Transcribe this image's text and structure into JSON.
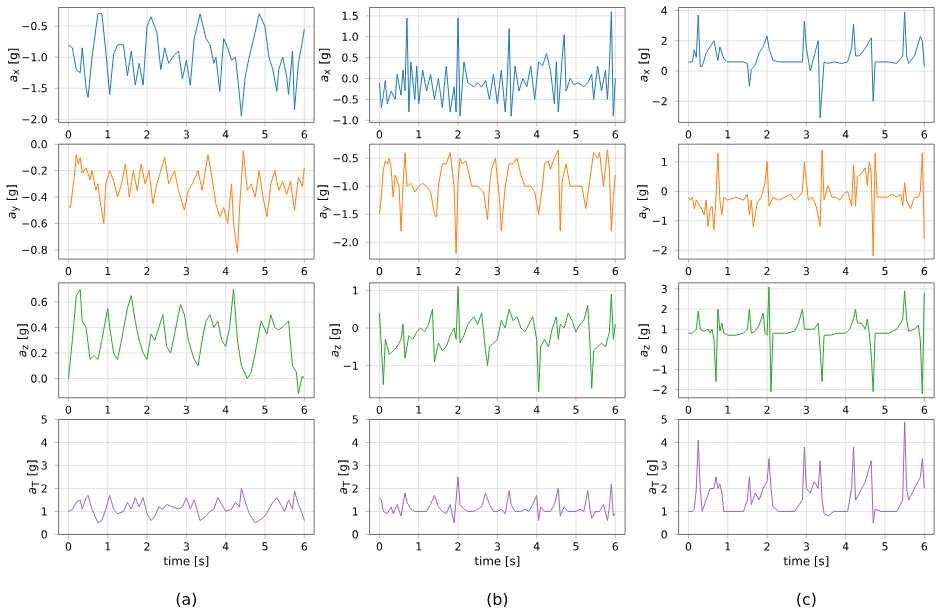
{
  "chart_data": [
    {
      "type": "line",
      "ylabel": "*a*$_{x}$ [g]",
      "color": "#1f77b4",
      "grid": true,
      "xlim": [
        -0.25,
        6.25
      ],
      "ylim": [
        -2.05,
        -0.2
      ],
      "xticks": [
        0,
        1,
        2,
        3,
        4,
        5,
        6
      ],
      "yticks": [
        {
          "value": -2,
          "label": "−2.0"
        },
        {
          "value": -1.5,
          "label": "−1.5"
        },
        {
          "value": -1,
          "label": "−1.0"
        },
        {
          "value": -0.5,
          "label": "−0.5"
        }
      ],
      "x": [
        0,
        0.1,
        0.2,
        0.3,
        0.35,
        0.45,
        0.5,
        0.6,
        0.75,
        0.85,
        0.95,
        1.05,
        1.15,
        1.25,
        1.4,
        1.5,
        1.6,
        1.7,
        1.8,
        1.9,
        2.0,
        2.1,
        2.25,
        2.35,
        2.45,
        2.55,
        2.65,
        2.8,
        2.9,
        3.0,
        3.1,
        3.2,
        3.35,
        3.5,
        3.6,
        3.7,
        3.75,
        3.85,
        3.95,
        4.05,
        4.15,
        4.25,
        4.35,
        4.4,
        4.5,
        4.6,
        4.75,
        4.85,
        5.0,
        5.1,
        5.2,
        5.3,
        5.35,
        5.45,
        5.55,
        5.6,
        5.7,
        5.75,
        5.85,
        5.95,
        6.0
      ],
      "values": [
        -0.8,
        -0.85,
        -1.2,
        -1.25,
        -0.85,
        -1.5,
        -1.65,
        -1.0,
        -0.3,
        -0.3,
        -0.9,
        -1.6,
        -0.95,
        -0.8,
        -0.8,
        -1.3,
        -0.9,
        -1.45,
        -1.1,
        -1.45,
        -0.5,
        -0.35,
        -0.6,
        -1.2,
        -0.85,
        -1.1,
        -1.0,
        -0.9,
        -1.35,
        -1.05,
        -1.45,
        -0.7,
        -0.3,
        -0.7,
        -0.8,
        -1.1,
        -1.0,
        -1.55,
        -0.7,
        -0.85,
        -1.05,
        -1.0,
        -1.6,
        -1.95,
        -1.3,
        -1.0,
        -0.6,
        -0.3,
        -0.5,
        -1.0,
        -1.2,
        -1.55,
        -1.2,
        -1.0,
        -1.3,
        -1.6,
        -0.9,
        -1.85,
        -1.1,
        -0.75,
        -0.55
      ]
    },
    {
      "type": "line",
      "ylabel": "*a*$_{x}$ [g]",
      "color": "#1f77b4",
      "grid": true,
      "xlim": [
        -0.25,
        6.25
      ],
      "ylim": [
        -1.05,
        1.7
      ],
      "xticks": [
        0,
        1,
        2,
        3,
        4,
        5,
        6
      ],
      "yticks": [
        {
          "value": -1,
          "label": "−1.0"
        },
        {
          "value": -0.5,
          "label": "−0.5"
        },
        {
          "value": 0,
          "label": "0.0"
        },
        {
          "value": 0.5,
          "label": "0.5"
        },
        {
          "value": 1,
          "label": "1.0"
        },
        {
          "value": 1.5,
          "label": "1.5"
        }
      ],
      "x": [
        0,
        0.05,
        0.1,
        0.15,
        0.2,
        0.3,
        0.4,
        0.45,
        0.55,
        0.6,
        0.65,
        0.7,
        0.75,
        0.8,
        0.9,
        0.95,
        1.0,
        1.1,
        1.2,
        1.3,
        1.4,
        1.5,
        1.6,
        1.7,
        1.8,
        1.9,
        1.95,
        2.0,
        2.05,
        2.15,
        2.25,
        2.4,
        2.5,
        2.6,
        2.7,
        2.8,
        2.9,
        3.0,
        3.1,
        3.2,
        3.25,
        3.3,
        3.35,
        3.45,
        3.55,
        3.65,
        3.75,
        3.85,
        3.95,
        4.05,
        4.15,
        4.25,
        4.35,
        4.45,
        4.5,
        4.55,
        4.65,
        4.7,
        4.75,
        4.85,
        4.95,
        5.05,
        5.2,
        5.3,
        5.4,
        5.45,
        5.55,
        5.65,
        5.75,
        5.8,
        5.85,
        5.9,
        5.95,
        6.0
      ],
      "values": [
        -0.1,
        -0.7,
        -0.4,
        -0.05,
        -0.6,
        -0.3,
        -0.5,
        0.1,
        -0.4,
        0.2,
        -0.3,
        1.45,
        -0.8,
        0.4,
        -0.5,
        0.3,
        -0.6,
        0.2,
        -0.3,
        0.1,
        -0.5,
        0.0,
        -0.7,
        0.3,
        -0.8,
        -0.2,
        -0.8,
        1.45,
        -0.9,
        0.4,
        -0.1,
        -0.2,
        -0.1,
        -0.2,
        -0.05,
        -0.5,
        0.1,
        -0.6,
        0.2,
        -0.8,
        -0.1,
        1.2,
        -0.9,
        0.3,
        -0.3,
        0.0,
        -0.2,
        0.3,
        -0.5,
        0.4,
        0.3,
        0.6,
        0.2,
        -0.6,
        0.4,
        -0.8,
        0.5,
        1.05,
        -0.3,
        0.0,
        -0.15,
        -0.1,
        -0.2,
        -0.1,
        0.1,
        -0.5,
        0.3,
        -0.3,
        0.2,
        -0.5,
        0.3,
        1.6,
        -0.9,
        0.0
      ]
    },
    {
      "type": "line",
      "ylabel": "*a*$_{x}$ [g]",
      "color": "#1f77b4",
      "grid": true,
      "xlim": [
        -0.25,
        6.25
      ],
      "ylim": [
        -3.4,
        4.2
      ],
      "xticks": [
        0,
        1,
        2,
        3,
        4,
        5,
        6
      ],
      "yticks": [
        {
          "value": -2,
          "label": "−2"
        },
        {
          "value": 0,
          "label": "0"
        },
        {
          "value": 2,
          "label": "2"
        },
        {
          "value": 4,
          "label": "4"
        }
      ],
      "x": [
        0,
        0.1,
        0.15,
        0.2,
        0.25,
        0.3,
        0.35,
        0.45,
        0.55,
        0.65,
        0.7,
        0.75,
        0.8,
        0.9,
        1.0,
        1.2,
        1.4,
        1.5,
        1.55,
        1.6,
        1.7,
        1.8,
        1.9,
        2.0,
        2.05,
        2.15,
        2.3,
        2.5,
        2.7,
        2.9,
        2.95,
        3.0,
        3.1,
        3.2,
        3.3,
        3.35,
        3.45,
        3.55,
        3.7,
        3.9,
        4.05,
        4.15,
        4.2,
        4.25,
        4.35,
        4.5,
        4.65,
        4.7,
        4.75,
        4.9,
        5.1,
        5.3,
        5.45,
        5.5,
        5.55,
        5.6,
        5.75,
        5.9,
        5.95,
        6.0
      ],
      "values": [
        0.6,
        0.6,
        1.4,
        0.9,
        3.7,
        0.3,
        0.3,
        1.2,
        1.6,
        2.0,
        1.3,
        0.7,
        1.6,
        0.8,
        0.6,
        0.6,
        0.6,
        0.5,
        -1.0,
        0.1,
        0.4,
        1.2,
        1.6,
        2.3,
        1.5,
        0.7,
        0.6,
        0.6,
        0.6,
        0.6,
        3.3,
        1.5,
        0.0,
        1.0,
        2.0,
        -3.1,
        0.6,
        0.5,
        0.6,
        0.5,
        0.6,
        1.5,
        3.1,
        1.0,
        1.0,
        1.5,
        2.2,
        -2.0,
        0.6,
        0.6,
        0.6,
        0.5,
        1.0,
        3.9,
        1.0,
        0.5,
        1.0,
        2.3,
        2.0,
        0.3
      ]
    },
    {
      "type": "line",
      "ylabel": "*a*$_{y}$ [g]",
      "color": "#ff7f0e",
      "grid": true,
      "xlim": [
        -0.25,
        6.25
      ],
      "ylim": [
        -0.87,
        0.0
      ],
      "xticks": [
        0,
        1,
        2,
        3,
        4,
        5,
        6
      ],
      "yticks": [
        {
          "value": -0.8,
          "label": "−0.8"
        },
        {
          "value": -0.6,
          "label": "−0.6"
        },
        {
          "value": -0.4,
          "label": "−0.4"
        },
        {
          "value": -0.2,
          "label": "−0.2"
        },
        {
          "value": 0,
          "label": "0.0"
        }
      ],
      "x": [
        0,
        0.05,
        0.15,
        0.2,
        0.25,
        0.3,
        0.35,
        0.45,
        0.55,
        0.6,
        0.7,
        0.75,
        0.8,
        0.9,
        0.95,
        1.05,
        1.15,
        1.25,
        1.35,
        1.45,
        1.55,
        1.65,
        1.75,
        1.85,
        1.95,
        2.05,
        2.15,
        2.25,
        2.35,
        2.45,
        2.55,
        2.7,
        2.8,
        2.95,
        3.05,
        3.15,
        3.3,
        3.4,
        3.55,
        3.65,
        3.75,
        3.85,
        3.95,
        4.05,
        4.15,
        4.2,
        4.3,
        4.35,
        4.45,
        4.55,
        4.65,
        4.75,
        4.85,
        4.95,
        5.05,
        5.15,
        5.25,
        5.35,
        5.45,
        5.55,
        5.65,
        5.75,
        5.85,
        5.95,
        6.0
      ],
      "values": [
        -0.47,
        -0.48,
        -0.25,
        -0.08,
        -0.15,
        -0.1,
        -0.22,
        -0.18,
        -0.27,
        -0.2,
        -0.35,
        -0.3,
        -0.42,
        -0.6,
        -0.3,
        -0.2,
        -0.28,
        -0.4,
        -0.3,
        -0.15,
        -0.4,
        -0.2,
        -0.35,
        -0.15,
        -0.3,
        -0.2,
        -0.45,
        -0.3,
        -0.2,
        -0.1,
        -0.3,
        -0.2,
        -0.35,
        -0.5,
        -0.35,
        -0.3,
        -0.2,
        -0.35,
        -0.08,
        -0.25,
        -0.45,
        -0.55,
        -0.48,
        -0.6,
        -0.3,
        -0.6,
        -0.82,
        -0.5,
        -0.05,
        -0.35,
        -0.3,
        -0.4,
        -0.2,
        -0.4,
        -0.55,
        -0.3,
        -0.2,
        -0.35,
        -0.28,
        -0.38,
        -0.28,
        -0.5,
        -0.25,
        -0.32,
        -0.18
      ]
    },
    {
      "type": "line",
      "ylabel": "*a*$_{y}$ [g]",
      "color": "#ff7f0e",
      "grid": true,
      "xlim": [
        -0.25,
        6.25
      ],
      "ylim": [
        -2.3,
        -0.25
      ],
      "xticks": [
        0,
        1,
        2,
        3,
        4,
        5,
        6
      ],
      "yticks": [
        {
          "value": -2,
          "label": "−2.0"
        },
        {
          "value": -1.5,
          "label": "−1.5"
        },
        {
          "value": -1,
          "label": "−1.0"
        },
        {
          "value": -0.5,
          "label": "−0.5"
        }
      ],
      "x": [
        0,
        0.05,
        0.1,
        0.15,
        0.2,
        0.25,
        0.3,
        0.35,
        0.4,
        0.5,
        0.55,
        0.6,
        0.65,
        0.7,
        0.8,
        0.9,
        1.0,
        1.1,
        1.2,
        1.3,
        1.4,
        1.45,
        1.5,
        1.6,
        1.7,
        1.8,
        1.9,
        1.95,
        2.0,
        2.05,
        2.1,
        2.2,
        2.35,
        2.5,
        2.65,
        2.75,
        2.8,
        2.85,
        2.95,
        3.05,
        3.1,
        3.2,
        3.3,
        3.4,
        3.5,
        3.6,
        3.7,
        3.85,
        3.95,
        4.05,
        4.15,
        4.2,
        4.3,
        4.35,
        4.45,
        4.55,
        4.6,
        4.65,
        4.75,
        4.85,
        5.0,
        5.15,
        5.25,
        5.35,
        5.45,
        5.55,
        5.6,
        5.7,
        5.8,
        5.85,
        5.9,
        5.95,
        6.0
      ],
      "values": [
        -1.5,
        -1.2,
        -0.7,
        -0.55,
        -0.6,
        -0.5,
        -0.7,
        -1.2,
        -0.8,
        -1.0,
        -1.8,
        -1.0,
        -0.4,
        -1.0,
        -0.95,
        -1.1,
        -1.0,
        -0.95,
        -1.0,
        -1.1,
        -1.5,
        -1.55,
        -1.0,
        -0.6,
        -0.6,
        -0.4,
        -1.0,
        -2.2,
        -0.9,
        -0.5,
        -0.6,
        -0.55,
        -1.0,
        -1.0,
        -1.1,
        -1.6,
        -1.0,
        -0.7,
        -0.5,
        -1.2,
        -1.8,
        -1.0,
        -0.6,
        -0.6,
        -0.5,
        -0.8,
        -1.0,
        -1.0,
        -1.1,
        -1.5,
        -1.0,
        -0.6,
        -0.55,
        -0.7,
        -0.5,
        -0.35,
        -1.8,
        -0.9,
        -0.6,
        -1.0,
        -1.0,
        -1.0,
        -1.4,
        -0.9,
        -0.4,
        -0.5,
        -0.4,
        -1.0,
        -0.35,
        -0.7,
        -1.8,
        -1.2,
        -0.8
      ]
    },
    {
      "type": "line",
      "ylabel": "*a*$_{y}$ [g]",
      "color": "#ff7f0e",
      "grid": true,
      "xlim": [
        -0.25,
        6.25
      ],
      "ylim": [
        -2.3,
        1.6
      ],
      "xticks": [
        0,
        1,
        2,
        3,
        4,
        5,
        6
      ],
      "yticks": [
        {
          "value": -2,
          "label": "−2"
        },
        {
          "value": -1,
          "label": "−1"
        },
        {
          "value": 0,
          "label": "0"
        },
        {
          "value": 1,
          "label": "1"
        }
      ],
      "x": [
        0,
        0.05,
        0.1,
        0.15,
        0.2,
        0.3,
        0.4,
        0.45,
        0.5,
        0.55,
        0.6,
        0.65,
        0.7,
        0.75,
        0.8,
        0.85,
        0.9,
        1.0,
        1.2,
        1.4,
        1.5,
        1.55,
        1.6,
        1.65,
        1.75,
        1.85,
        1.95,
        2.0,
        2.05,
        2.15,
        2.3,
        2.45,
        2.6,
        2.7,
        2.8,
        2.9,
        2.95,
        3.05,
        3.15,
        3.25,
        3.35,
        3.4,
        3.45,
        3.55,
        3.65,
        3.75,
        3.85,
        3.95,
        4.05,
        4.15,
        4.2,
        4.25,
        4.3,
        4.4,
        4.5,
        4.55,
        4.6,
        4.65,
        4.7,
        4.75,
        4.8,
        4.9,
        5.05,
        5.2,
        5.3,
        5.4,
        5.45,
        5.5,
        5.55,
        5.65,
        5.75,
        5.85,
        5.9,
        5.95,
        6.0
      ],
      "values": [
        -0.2,
        -0.3,
        -0.2,
        -0.6,
        -0.3,
        -0.5,
        -0.8,
        -0.3,
        -1.2,
        -0.6,
        -0.5,
        -1.3,
        -0.2,
        1.3,
        -0.3,
        -0.8,
        -0.2,
        -0.3,
        -0.2,
        -0.3,
        -0.1,
        -0.8,
        -0.3,
        -1.2,
        -0.4,
        -0.2,
        0.3,
        1.0,
        -0.5,
        -0.2,
        -0.3,
        -0.2,
        -0.1,
        -0.3,
        -0.2,
        0.0,
        1.0,
        -0.3,
        -0.2,
        -0.5,
        -1.2,
        1.4,
        -0.3,
        0.2,
        -0.2,
        -0.2,
        -0.3,
        -0.1,
        0.0,
        -0.5,
        0.9,
        -0.5,
        0.5,
        0.6,
        0.8,
        0.2,
        1.0,
        0.6,
        -2.2,
        1.3,
        -0.2,
        -0.2,
        -0.2,
        -0.1,
        -0.2,
        -0.1,
        -0.5,
        0.3,
        -0.3,
        -0.6,
        -0.2,
        -0.2,
        0.0,
        1.3,
        -1.6
      ]
    },
    {
      "type": "line",
      "ylabel": "*a*$_{z}$ [g]",
      "color": "#2ca02c",
      "grid": true,
      "xlim": [
        -0.25,
        6.25
      ],
      "ylim": [
        -0.15,
        0.75
      ],
      "xticks": [
        0,
        1,
        2,
        3,
        4,
        5,
        6
      ],
      "yticks": [
        {
          "value": 0,
          "label": "0.0"
        },
        {
          "value": 0.2,
          "label": "0.2"
        },
        {
          "value": 0.4,
          "label": "0.4"
        },
        {
          "value": 0.6,
          "label": "0.6"
        }
      ],
      "x": [
        0,
        0.1,
        0.2,
        0.3,
        0.35,
        0.45,
        0.55,
        0.65,
        0.75,
        0.85,
        1.0,
        1.05,
        1.15,
        1.25,
        1.35,
        1.5,
        1.6,
        1.7,
        1.8,
        1.9,
        2.0,
        2.1,
        2.2,
        2.3,
        2.4,
        2.5,
        2.6,
        2.7,
        2.85,
        2.95,
        3.05,
        3.2,
        3.3,
        3.4,
        3.5,
        3.6,
        3.7,
        3.8,
        3.9,
        4.0,
        4.1,
        4.2,
        4.3,
        4.4,
        4.55,
        4.65,
        4.75,
        4.9,
        5.05,
        5.15,
        5.25,
        5.35,
        5.5,
        5.6,
        5.7,
        5.8,
        5.85,
        5.95,
        6.0
      ],
      "values": [
        0.0,
        0.3,
        0.65,
        0.7,
        0.45,
        0.4,
        0.15,
        0.18,
        0.15,
        0.3,
        0.55,
        0.4,
        0.2,
        0.15,
        0.3,
        0.55,
        0.65,
        0.45,
        0.3,
        0.2,
        0.15,
        0.35,
        0.3,
        0.4,
        0.5,
        0.25,
        0.2,
        0.35,
        0.58,
        0.5,
        0.3,
        0.15,
        0.1,
        0.3,
        0.45,
        0.5,
        0.4,
        0.45,
        0.3,
        0.25,
        0.4,
        0.7,
        0.3,
        0.1,
        0.0,
        0.05,
        0.2,
        0.45,
        0.35,
        0.5,
        0.4,
        0.38,
        0.42,
        0.45,
        0.1,
        0.05,
        -0.12,
        0.02,
        0.0
      ]
    },
    {
      "type": "line",
      "ylabel": "*a*$_{z}$ [g]",
      "color": "#2ca02c",
      "grid": true,
      "xlim": [
        -0.25,
        6.25
      ],
      "ylim": [
        -1.85,
        1.2
      ],
      "xticks": [
        0,
        1,
        2,
        3,
        4,
        5,
        6
      ],
      "yticks": [
        {
          "value": -1,
          "label": "−1"
        },
        {
          "value": 0,
          "label": "0"
        },
        {
          "value": 1,
          "label": "1"
        }
      ],
      "x": [
        0,
        0.05,
        0.1,
        0.15,
        0.25,
        0.35,
        0.45,
        0.55,
        0.6,
        0.65,
        0.75,
        0.85,
        0.95,
        1.05,
        1.15,
        1.25,
        1.35,
        1.4,
        1.5,
        1.6,
        1.7,
        1.8,
        1.9,
        1.95,
        2.0,
        2.05,
        2.15,
        2.25,
        2.4,
        2.5,
        2.6,
        2.7,
        2.75,
        2.8,
        2.9,
        3.0,
        3.1,
        3.2,
        3.3,
        3.4,
        3.5,
        3.6,
        3.7,
        3.8,
        3.9,
        4.0,
        4.05,
        4.1,
        4.2,
        4.3,
        4.4,
        4.5,
        4.55,
        4.6,
        4.7,
        4.8,
        4.9,
        5.0,
        5.1,
        5.2,
        5.3,
        5.35,
        5.4,
        5.45,
        5.55,
        5.65,
        5.75,
        5.85,
        5.9,
        5.95,
        6.0
      ],
      "values": [
        0.4,
        -0.5,
        -1.5,
        -0.3,
        -0.7,
        -0.6,
        -0.5,
        -0.3,
        0.1,
        -0.8,
        -0.2,
        -0.3,
        -0.1,
        0.0,
        -0.1,
        0.1,
        0.5,
        -0.9,
        -0.4,
        -0.6,
        -0.5,
        -0.2,
        0.0,
        -0.3,
        1.1,
        -0.4,
        -0.2,
        0.1,
        0.3,
        0.1,
        0.4,
        -0.6,
        -1.0,
        -0.5,
        -0.4,
        -0.3,
        0.2,
        0.0,
        0.5,
        0.2,
        0.3,
        0.0,
        -0.1,
        0.1,
        0.3,
        -0.3,
        -1.7,
        -0.5,
        -0.3,
        -0.5,
        0.0,
        0.3,
        -0.3,
        0.1,
        0.0,
        0.4,
        0.2,
        -0.1,
        0.1,
        0.2,
        0.6,
        -0.3,
        -1.6,
        -0.6,
        -0.5,
        -0.4,
        -0.5,
        -0.1,
        0.9,
        -0.3,
        0.1
      ]
    },
    {
      "type": "line",
      "ylabel": "*a*$_{z}$ [g]",
      "color": "#2ca02c",
      "grid": true,
      "xlim": [
        -0.25,
        6.25
      ],
      "ylim": [
        -2.4,
        3.3
      ],
      "xticks": [
        0,
        1,
        2,
        3,
        4,
        5,
        6
      ],
      "yticks": [
        {
          "value": -2,
          "label": "−2"
        },
        {
          "value": -1,
          "label": "−1"
        },
        {
          "value": 0,
          "label": "0"
        },
        {
          "value": 1,
          "label": "1"
        },
        {
          "value": 2,
          "label": "2"
        },
        {
          "value": 3,
          "label": "3"
        }
      ],
      "x": [
        0,
        0.1,
        0.2,
        0.25,
        0.3,
        0.4,
        0.5,
        0.55,
        0.6,
        0.65,
        0.7,
        0.75,
        0.8,
        0.85,
        0.9,
        1.0,
        1.2,
        1.4,
        1.5,
        1.55,
        1.6,
        1.7,
        1.8,
        1.9,
        1.95,
        2.0,
        2.05,
        2.1,
        2.15,
        2.3,
        2.5,
        2.7,
        2.8,
        2.9,
        2.95,
        3.05,
        3.2,
        3.3,
        3.35,
        3.4,
        3.45,
        3.6,
        3.8,
        4.0,
        4.1,
        4.2,
        4.25,
        4.3,
        4.4,
        4.5,
        4.55,
        4.6,
        4.65,
        4.7,
        4.75,
        4.9,
        5.1,
        5.3,
        5.4,
        5.45,
        5.5,
        5.55,
        5.6,
        5.75,
        5.85,
        5.9,
        5.95,
        6.0
      ],
      "values": [
        0.8,
        0.8,
        1.0,
        1.9,
        1.0,
        0.9,
        1.0,
        0.8,
        1.0,
        0.5,
        -1.6,
        2.0,
        0.9,
        1.3,
        0.8,
        0.7,
        0.7,
        0.8,
        1.0,
        2.0,
        0.8,
        0.9,
        1.2,
        1.8,
        0.8,
        0.7,
        3.1,
        -2.1,
        0.8,
        0.8,
        0.8,
        0.9,
        1.3,
        2.0,
        1.0,
        1.0,
        1.0,
        1.3,
        0.0,
        -1.6,
        0.7,
        0.7,
        0.8,
        0.8,
        1.0,
        1.5,
        2.0,
        1.3,
        1.3,
        1.0,
        1.5,
        0.8,
        -0.3,
        -2.1,
        0.8,
        0.8,
        0.8,
        1.0,
        1.3,
        1.5,
        2.9,
        1.5,
        0.9,
        1.0,
        1.2,
        0.4,
        -2.2,
        2.8
      ]
    },
    {
      "type": "line",
      "ylabel": "*a*$_{T}$ [g]",
      "xlabel": "time [s]",
      "annotations": [
        "(a)"
      ],
      "color": "#9467bd",
      "grid": true,
      "xlim": [
        -0.25,
        6.25
      ],
      "ylim": [
        0,
        5
      ],
      "xticks": [
        0,
        1,
        2,
        3,
        4,
        5,
        6
      ],
      "yticks": [
        0,
        1,
        2,
        3,
        4,
        5
      ],
      "x": [
        0,
        0.1,
        0.2,
        0.3,
        0.35,
        0.45,
        0.5,
        0.6,
        0.75,
        0.85,
        0.95,
        1.05,
        1.15,
        1.25,
        1.4,
        1.5,
        1.6,
        1.7,
        1.8,
        1.9,
        2.0,
        2.1,
        2.2,
        2.3,
        2.4,
        2.5,
        2.65,
        2.8,
        2.9,
        3.0,
        3.1,
        3.2,
        3.35,
        3.5,
        3.6,
        3.7,
        3.8,
        3.9,
        4.0,
        4.15,
        4.25,
        4.35,
        4.4,
        4.5,
        4.6,
        4.75,
        4.85,
        5.0,
        5.1,
        5.2,
        5.3,
        5.4,
        5.5,
        5.6,
        5.7,
        5.75,
        5.85,
        5.95,
        6.0
      ],
      "values": [
        1.0,
        1.1,
        1.4,
        1.5,
        1.1,
        1.6,
        1.7,
        1.1,
        0.5,
        0.6,
        1.1,
        1.7,
        1.1,
        0.9,
        1.0,
        1.4,
        1.1,
        1.6,
        1.2,
        1.6,
        0.9,
        0.6,
        0.8,
        1.2,
        1.1,
        1.3,
        1.2,
        1.1,
        1.2,
        1.6,
        1.1,
        1.5,
        0.6,
        0.8,
        1.0,
        1.1,
        1.6,
        1.3,
        1.0,
        1.1,
        1.4,
        1.2,
        2.0,
        1.4,
        0.9,
        0.5,
        0.6,
        0.8,
        1.1,
        1.4,
        1.6,
        1.3,
        1.0,
        1.5,
        1.1,
        1.9,
        1.3,
        0.9,
        0.6
      ]
    },
    {
      "type": "line",
      "ylabel": "*a*$_{T}$ [g]",
      "xlabel": "time [s]",
      "annotations": [
        "(b)"
      ],
      "color": "#9467bd",
      "grid": true,
      "xlim": [
        -0.25,
        6.25
      ],
      "ylim": [
        0,
        5
      ],
      "xticks": [
        0,
        1,
        2,
        3,
        4,
        5,
        6
      ],
      "yticks": [
        0,
        1,
        2,
        3,
        4,
        5
      ],
      "x": [
        0,
        0.05,
        0.1,
        0.2,
        0.3,
        0.35,
        0.45,
        0.55,
        0.65,
        0.7,
        0.8,
        0.9,
        1.0,
        1.1,
        1.2,
        1.3,
        1.4,
        1.5,
        1.6,
        1.7,
        1.8,
        1.9,
        1.95,
        2.0,
        2.05,
        2.15,
        2.25,
        2.4,
        2.5,
        2.6,
        2.7,
        2.8,
        2.9,
        3.0,
        3.1,
        3.2,
        3.3,
        3.35,
        3.45,
        3.6,
        3.7,
        3.8,
        3.9,
        4.0,
        4.05,
        4.1,
        4.2,
        4.35,
        4.45,
        4.55,
        4.6,
        4.7,
        4.8,
        5.0,
        5.1,
        5.2,
        5.3,
        5.35,
        5.4,
        5.5,
        5.6,
        5.7,
        5.8,
        5.85,
        5.9,
        5.95,
        6.0
      ],
      "values": [
        1.6,
        1.5,
        1.0,
        0.9,
        1.2,
        0.9,
        1.3,
        0.8,
        1.8,
        1.4,
        1.1,
        1.0,
        1.0,
        1.0,
        1.0,
        1.3,
        1.7,
        1.2,
        1.0,
        0.9,
        1.3,
        0.5,
        1.5,
        2.5,
        1.3,
        1.1,
        1.0,
        1.0,
        1.1,
        1.2,
        1.8,
        1.3,
        1.0,
        1.0,
        1.1,
        0.9,
        1.9,
        1.3,
        1.0,
        1.0,
        1.1,
        1.0,
        1.3,
        1.7,
        0.6,
        1.2,
        1.0,
        1.0,
        1.3,
        2.0,
        0.8,
        1.2,
        1.0,
        1.0,
        1.1,
        1.0,
        1.9,
        1.2,
        0.7,
        1.0,
        1.0,
        1.3,
        0.6,
        1.2,
        2.2,
        0.8,
        0.9
      ]
    },
    {
      "type": "line",
      "ylabel": "*a*$_{T}$ [g]",
      "xlabel": "time [s]",
      "annotations": [
        "(c)"
      ],
      "color": "#9467bd",
      "grid": true,
      "xlim": [
        -0.25,
        6.25
      ],
      "ylim": [
        0,
        5
      ],
      "xticks": [
        0,
        1,
        2,
        3,
        4,
        5,
        6
      ],
      "yticks": [
        0,
        1,
        2,
        3,
        4,
        5
      ],
      "x": [
        0,
        0.1,
        0.15,
        0.2,
        0.25,
        0.3,
        0.35,
        0.45,
        0.55,
        0.65,
        0.7,
        0.75,
        0.8,
        0.85,
        0.9,
        1.0,
        1.2,
        1.4,
        1.5,
        1.55,
        1.6,
        1.7,
        1.8,
        1.9,
        2.0,
        2.05,
        2.1,
        2.15,
        2.3,
        2.5,
        2.7,
        2.9,
        2.95,
        3.0,
        3.1,
        3.2,
        3.3,
        3.35,
        3.4,
        3.45,
        3.55,
        3.7,
        3.9,
        4.05,
        4.15,
        4.2,
        4.25,
        4.35,
        4.5,
        4.65,
        4.7,
        4.75,
        4.9,
        5.1,
        5.3,
        5.45,
        5.5,
        5.55,
        5.6,
        5.75,
        5.9,
        5.95,
        6.0
      ],
      "values": [
        1.0,
        1.0,
        1.1,
        2.0,
        4.1,
        2.0,
        1.0,
        1.5,
        2.0,
        2.0,
        2.5,
        2.0,
        2.2,
        1.8,
        1.0,
        1.0,
        1.0,
        1.0,
        1.5,
        2.5,
        1.3,
        1.8,
        1.5,
        2.0,
        2.3,
        3.3,
        2.0,
        1.2,
        1.0,
        1.0,
        1.0,
        1.5,
        3.8,
        2.0,
        1.8,
        2.3,
        2.0,
        3.2,
        1.5,
        0.9,
        0.8,
        1.0,
        1.0,
        1.0,
        2.0,
        3.8,
        1.5,
        1.8,
        2.3,
        3.2,
        0.5,
        1.1,
        1.0,
        1.0,
        1.0,
        1.5,
        4.9,
        2.0,
        1.5,
        2.0,
        2.5,
        3.3,
        2.0
      ]
    }
  ]
}
